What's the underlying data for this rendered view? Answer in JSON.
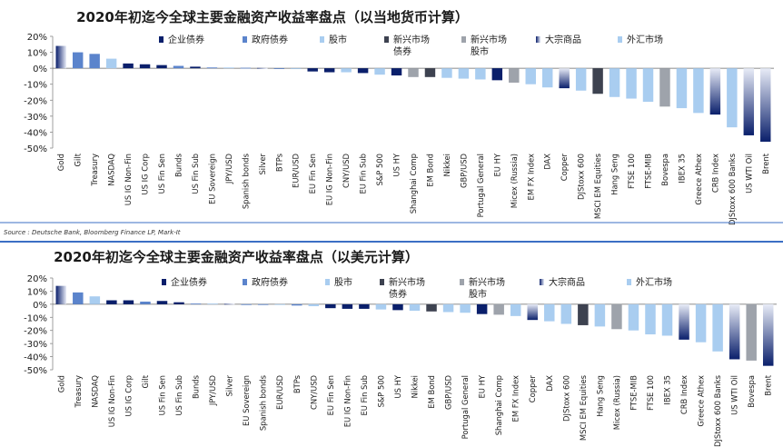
{
  "source_note": "Source : Deutsche Bank, Bloomberg Finance LP, Mark-It",
  "legend_colors": {
    "企业债券": "#0a1f6b",
    "政府债券": "#5b84cc",
    "股市": "#a9cdf0",
    "新兴市场债券": "#3d4250",
    "新兴市场股市": "#9ea3ab",
    "大宗商品": "gradient-navy-white",
    "外汇市场": "#a9cdf0"
  },
  "chart_data": [
    {
      "type": "bar",
      "title": "2020年初迄今全球主要金融资产收益率盘点（以当地货币计算）",
      "ylim": [
        -50,
        20
      ],
      "yticks": [
        "20%",
        "10%",
        "0%",
        "-10%",
        "-20%",
        "-30%",
        "-40%",
        "-50%"
      ],
      "legend": [
        "企业债券",
        "政府债券",
        "股市",
        "新兴市场债券",
        "新兴市场股市",
        "大宗商品",
        "外汇市场"
      ],
      "categories": [
        "Gold",
        "Gilt",
        "Treasury",
        "NASDAQ",
        "US IG Non-Fin",
        "US IG Corp",
        "US Fin Sen",
        "Bunds",
        "US Fin Sub",
        "EU Sovereign",
        "JPY/USD",
        "Spanish bonds",
        "Silver",
        "BTPs",
        "EUR/USD",
        "EU Fin Sen",
        "EU IG Non-Fin",
        "CNY/USD",
        "EU Fin Sub",
        "S&P 500",
        "US HY",
        "Shanghai Comp",
        "EM Bond",
        "Nikkei",
        "GBP/USD",
        "Portugal General",
        "EU HY",
        "Micex (Russia)",
        "EM FX Index",
        "DAX",
        "Copper",
        "DJStoxx 600",
        "MSCI EM Equities",
        "Hang Seng",
        "FTSE 100",
        "FTSE-MIB",
        "Bovespa",
        "IBEX 35",
        "Greece Athex",
        "CRB Index",
        "DJStoxx 600 Banks",
        "US WTI Oil",
        "Brent"
      ],
      "groups": [
        "cmd",
        "gov",
        "gov",
        "eq",
        "corp",
        "corp",
        "corp",
        "gov",
        "corp",
        "gov",
        "fx",
        "gov",
        "cmd",
        "gov",
        "fx",
        "corp",
        "corp",
        "fx",
        "corp",
        "eq",
        "corp",
        "eme",
        "emb",
        "eq",
        "fx",
        "eq",
        "corp",
        "eme",
        "fx",
        "eq",
        "cmd",
        "eq",
        "emb",
        "eq",
        "eq",
        "eq",
        "eme",
        "eq",
        "eq",
        "cmd",
        "eq",
        "cmd",
        "cmd"
      ],
      "values": [
        14,
        10,
        9,
        6,
        3,
        2.5,
        2,
        1.5,
        1,
        0.5,
        0.5,
        0.3,
        0.2,
        -0.3,
        -0.5,
        -2,
        -2.5,
        -2.5,
        -3,
        -4,
        -4.5,
        -5.5,
        -5.5,
        -6,
        -6.5,
        -7,
        -7.5,
        -9,
        -10,
        -12,
        -12.5,
        -14,
        -16,
        -18,
        -19,
        -21,
        -24,
        -25,
        -28,
        -29,
        -37,
        -42,
        -46
      ]
    },
    {
      "type": "bar",
      "title": "2020年初迄今全球主要金融资产收益率盘点（以美元计算）",
      "ylim": [
        -50,
        20
      ],
      "yticks": [
        "20%",
        "10%",
        "0%",
        "-10%",
        "-20%",
        "-30%",
        "-40%",
        "-50%"
      ],
      "legend": [
        "企业债券",
        "政府债券",
        "股市",
        "新兴市场债券",
        "新兴市场股市",
        "大宗商品",
        "外汇市场"
      ],
      "categories": [
        "Gold",
        "Treasury",
        "NASDAQ",
        "US IG Non-Fin",
        "US IG Corp",
        "Gilt",
        "US Fin Sen",
        "US Fin Sub",
        "Bunds",
        "JPY/USD",
        "Silver",
        "EU Sovereign",
        "Spanish bonds",
        "EUR/USD",
        "BTPs",
        "CNY/USD",
        "EU Fin Sen",
        "EU IG Non-Fin",
        "EU Fin Sub",
        "S&P 500",
        "US HY",
        "Nikkei",
        "EM Bond",
        "GBP/USD",
        "Portugal General",
        "EU HY",
        "Shanghai Comp",
        "EM FX Index",
        "Copper",
        "DAX",
        "DJStoxx 600",
        "MSCI EM Equities",
        "Hang Seng",
        "Micex (Russia)",
        "FTSE-MIB",
        "FTSE 100",
        "IBEX 35",
        "CRB Index",
        "Greece Athex",
        "DJStoxx 600 Banks",
        "US WTI Oil",
        "Bovespa",
        "Brent"
      ],
      "groups": [
        "cmd",
        "gov",
        "eq",
        "corp",
        "corp",
        "gov",
        "corp",
        "corp",
        "gov",
        "fx",
        "cmd",
        "gov",
        "gov",
        "fx",
        "gov",
        "fx",
        "corp",
        "corp",
        "corp",
        "eq",
        "corp",
        "eq",
        "emb",
        "fx",
        "eq",
        "corp",
        "eme",
        "fx",
        "cmd",
        "eq",
        "eq",
        "emb",
        "eq",
        "eme",
        "eq",
        "eq",
        "eq",
        "cmd",
        "eq",
        "eq",
        "cmd",
        "eme",
        "cmd"
      ],
      "values": [
        14,
        9,
        6,
        3,
        3,
        2,
        2.5,
        1.5,
        0.5,
        0.5,
        0.3,
        -0.2,
        -0.5,
        -0.5,
        -1,
        -1.5,
        -3,
        -3.5,
        -3.5,
        -4,
        -4.5,
        -5,
        -5.5,
        -6,
        -6.5,
        -7.5,
        -8,
        -9,
        -12,
        -13,
        -15,
        -16,
        -17,
        -19,
        -20,
        -23,
        -24,
        -27,
        -29,
        -36,
        -42,
        -43,
        -47
      ]
    }
  ]
}
